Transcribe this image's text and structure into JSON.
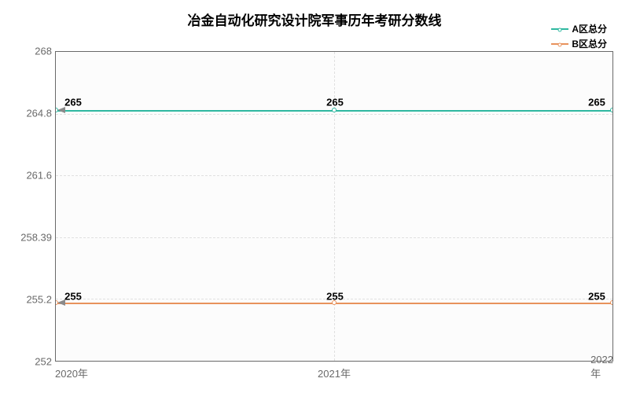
{
  "chart": {
    "type": "line",
    "title": "冶金自动化研究设计院军事历年考研分数线",
    "title_fontsize": 17,
    "background_color": "#ffffff",
    "plot_background": "#fcfcfc",
    "grid_color": "#e0e0e0",
    "grid_dash": "dashed",
    "border_color": "#696969",
    "axis_label_color": "#696969",
    "axis_fontsize": 13,
    "data_label_fontsize": 13,
    "data_label_weight": "bold",
    "legend_fontsize": 12,
    "legend_position": "top-right",
    "xlim": [
      2020,
      2022
    ],
    "x_categories": [
      "2020年",
      "2021年",
      "2022年"
    ],
    "x_positions_pct": [
      0,
      50,
      100
    ],
    "ylim": [
      252,
      268
    ],
    "y_ticks": [
      252,
      255.2,
      258.39,
      261.6,
      264.8,
      268
    ],
    "y_tick_labels": [
      "252",
      "255.2",
      "258.39",
      "261.6",
      "264.8",
      "268"
    ],
    "y_tick_positions_pct": [
      100,
      80,
      60,
      40,
      20,
      0
    ],
    "series": [
      {
        "name": "A区总分",
        "color": "#2fb8a0",
        "marker": "circle",
        "line_width": 2,
        "values": [
          265,
          265,
          265
        ],
        "y_pct": 18.75,
        "labels": [
          "265",
          "265",
          "265"
        ],
        "label_offset_x": [
          22,
          0,
          -22
        ],
        "label_offset_y": -10
      },
      {
        "name": "B区总分",
        "color": "#e8925c",
        "marker": "circle",
        "line_width": 2,
        "values": [
          255,
          255,
          255
        ],
        "y_pct": 81.25,
        "labels": [
          "255",
          "255",
          "255"
        ],
        "label_offset_x": [
          22,
          0,
          -22
        ],
        "label_offset_y": -10
      }
    ]
  }
}
